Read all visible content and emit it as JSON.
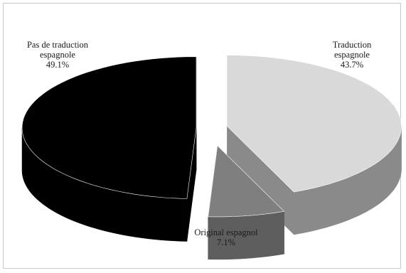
{
  "chart_data": {
    "type": "pie",
    "style": "3d-exploded",
    "slices": [
      {
        "label": "Pas de traduction espagnole",
        "label_lines": [
          "Pas de traduction",
          "espagnole"
        ],
        "value": 49.1,
        "value_text": "49.1%",
        "color": "#000000"
      },
      {
        "label": "Traduction espagnole",
        "label_lines": [
          "Traduction",
          "espagnole"
        ],
        "value": 43.7,
        "value_text": "43.7%",
        "color": "#d9d9d9"
      },
      {
        "label": "Original espagnol",
        "label_lines": [
          "Original espagnol"
        ],
        "value": 7.1,
        "value_text": "7.1%",
        "color": "#7f7f7f"
      }
    ],
    "legend": "none",
    "title": ""
  }
}
